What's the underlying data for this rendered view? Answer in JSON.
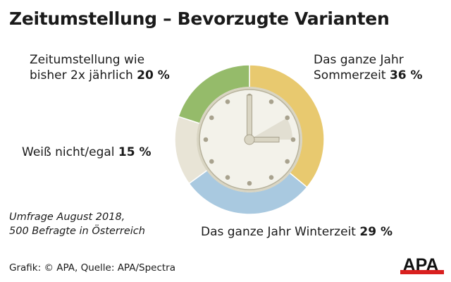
{
  "chart_data": {
    "type": "pie",
    "title": "Zeitumstellung – Bevorzugte Varianten",
    "unit": "%",
    "slices": [
      {
        "label_line1": "Das ganze Jahr",
        "label_line2": "Sommerzeit",
        "value": 36,
        "color": "#e8c96f"
      },
      {
        "label_line1": "",
        "label_line2": "Das ganze Jahr Winterzeit",
        "value": 29,
        "color": "#a9c9e0"
      },
      {
        "label_line1": "",
        "label_line2": "Weiß nicht/egal",
        "value": 15,
        "color": "#e8e4d6"
      },
      {
        "label_line1": "Zeitumstellung wie",
        "label_line2": "bisher 2x jährlich",
        "value": 20,
        "color": "#95bb6a"
      }
    ],
    "value_labels": [
      "36 %",
      "29 %",
      "15 %",
      "20 %"
    ]
  },
  "note": {
    "line1": "Umfrage August 2018,",
    "line2": "500 Befragte in Österreich"
  },
  "source": "Grafik: © APA, Quelle: APA/Spectra",
  "logo": {
    "text": "APA",
    "color": "#d9201f"
  }
}
